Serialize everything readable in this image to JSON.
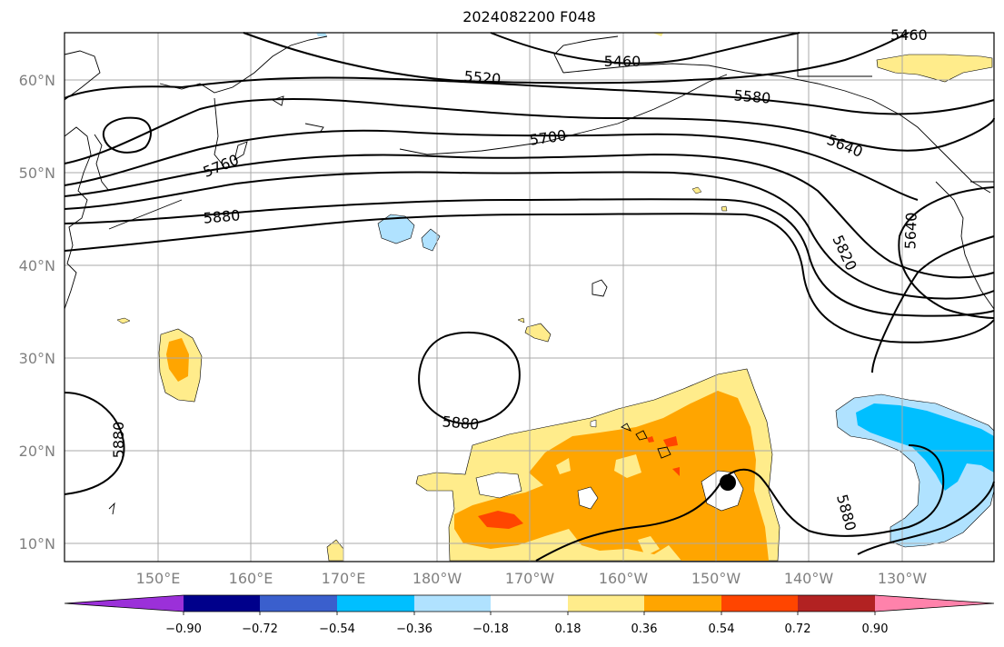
{
  "title": "2024082200 F048",
  "lat_labels": [
    "60°N",
    "50°N",
    "40°N",
    "30°N",
    "20°N",
    "10°N"
  ],
  "lon_labels": [
    "150°E",
    "160°E",
    "170°E",
    "180°W",
    "170°W",
    "160°W",
    "150°W",
    "140°W",
    "130°W"
  ],
  "contour_labels": [
    "5460",
    "5460",
    "5520",
    "5580",
    "5640",
    "5700",
    "5760",
    "5880",
    "5820",
    "5640",
    "5880",
    "5880",
    "5880"
  ],
  "colorbar": {
    "tick_labels": [
      "−0.90",
      "−0.72",
      "−0.54",
      "−0.36",
      "−0.18",
      "0.18",
      "0.36",
      "0.54",
      "0.72",
      "0.90"
    ],
    "colors": [
      "#9b30d9",
      "#00008b",
      "#3a5fcd",
      "#00bfff",
      "#b0e2ff",
      "#ffffff",
      "#ffec8b",
      "#ffa500",
      "#ff4500",
      "#b22222",
      "#ff82ab"
    ]
  },
  "marker": {
    "name": "storm-center-marker",
    "lat": 16.5,
    "lon": -149
  }
}
